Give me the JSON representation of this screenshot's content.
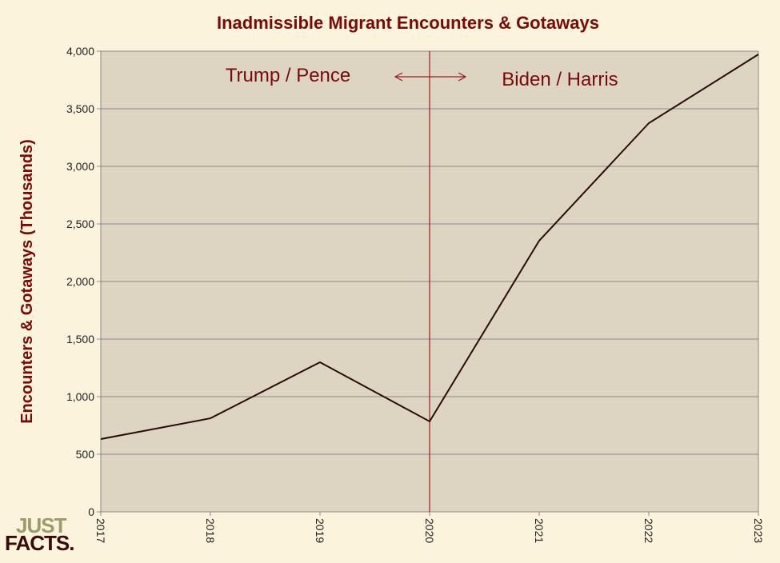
{
  "chart_data": {
    "type": "line",
    "title": "Inadmissible Migrant Encounters & Gotaways",
    "xlabel": "",
    "ylabel": "Encounters & Gotaways (Thousands)",
    "categories": [
      "2017",
      "2018",
      "2019",
      "2020",
      "2021",
      "2022",
      "2023"
    ],
    "series": [
      {
        "name": "Encounters & Gotaways",
        "values": [
          632,
          812,
          1299,
          785,
          2354,
          3375,
          3972
        ]
      }
    ],
    "ylim": [
      0,
      4000
    ],
    "yticks": [
      0,
      500,
      1000,
      1500,
      2000,
      2500,
      3000,
      3500,
      4000
    ],
    "ytick_labels": [
      "0",
      "500",
      "1,000",
      "1,500",
      "2,000",
      "2,500",
      "3,000",
      "3,500",
      "4,000"
    ],
    "grid": true,
    "annotations": {
      "left": "Trump / Pence",
      "right": "Biden / Harris",
      "divider_at": "2020"
    },
    "colors": {
      "line": "#2a0c0c",
      "divider": "#9b1c1c",
      "title": "#7a0a0a",
      "plot_bg": "#ddd5c1",
      "grid": "#8a8a8a"
    }
  },
  "logo": {
    "line1": "JUST",
    "line2": "FACTS."
  }
}
